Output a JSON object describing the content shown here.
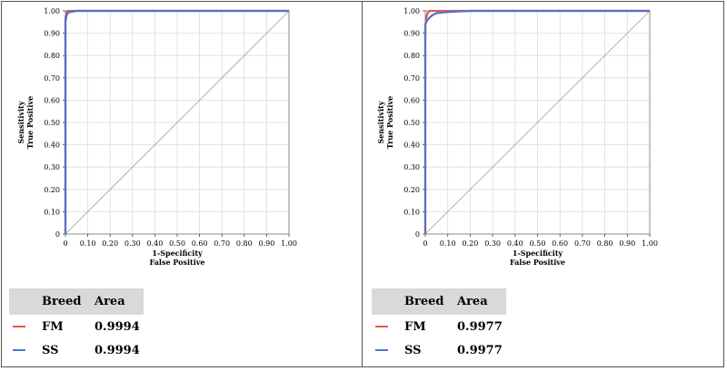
{
  "chart_data": [
    {
      "type": "line",
      "xlabel": [
        "1-Specificity",
        "False Positive"
      ],
      "ylabel": [
        "Sensitivity",
        "True Positive"
      ],
      "xlim": [
        0,
        1
      ],
      "ylim": [
        0,
        1
      ],
      "x_ticks": [
        "0",
        "0.10",
        "0.20",
        "0.30",
        "0.40",
        "0.50",
        "0.60",
        "0.70",
        "0.80",
        "0.90",
        "1.00"
      ],
      "y_ticks": [
        "0",
        "0.10",
        "0.20",
        "0.30",
        "0.40",
        "0.50",
        "0.60",
        "0.70",
        "0.80",
        "0.90",
        "1.00"
      ],
      "grid": true,
      "diagonal_reference": true,
      "series": [
        {
          "name": "FM",
          "color": "#e05a4f",
          "x": [
            0,
            0.0,
            0.005,
            0.01,
            0.02,
            0.05,
            0.1,
            1.0
          ],
          "y": [
            0,
            0.97,
            0.99,
            1.0,
            1.0,
            1.0,
            1.0,
            1.0
          ]
        },
        {
          "name": "SS",
          "color": "#5470c6",
          "x": [
            0,
            0.0,
            0.005,
            0.01,
            0.02,
            0.05,
            0.1,
            1.0
          ],
          "y": [
            0,
            0.95,
            0.98,
            0.99,
            0.995,
            1.0,
            1.0,
            1.0
          ]
        }
      ],
      "legend": {
        "headers": [
          "Breed",
          "Area"
        ],
        "rows": [
          {
            "breed": "FM",
            "area": "0.9994",
            "color": "#e05a4f"
          },
          {
            "breed": "SS",
            "area": "0.9994",
            "color": "#4a76c8"
          }
        ]
      }
    },
    {
      "type": "line",
      "xlabel": [
        "1-Specificity",
        "False Positive"
      ],
      "ylabel": [
        "Sensitivity",
        "True Positive"
      ],
      "xlim": [
        0,
        1
      ],
      "ylim": [
        0,
        1
      ],
      "x_ticks": [
        "0",
        "0.10",
        "0.20",
        "0.30",
        "0.40",
        "0.50",
        "0.60",
        "0.70",
        "0.80",
        "0.90",
        "1.00"
      ],
      "y_ticks": [
        "0",
        "0.10",
        "0.20",
        "0.30",
        "0.40",
        "0.50",
        "0.60",
        "0.70",
        "0.80",
        "0.90",
        "1.00"
      ],
      "grid": true,
      "diagonal_reference": true,
      "series": [
        {
          "name": "FM",
          "color": "#e05a4f",
          "x": [
            0,
            0.0,
            0.005,
            0.01,
            0.02,
            0.04,
            0.1,
            0.2,
            1.0
          ],
          "y": [
            0,
            0.93,
            0.97,
            0.99,
            1.0,
            1.0,
            1.0,
            1.0,
            1.0
          ]
        },
        {
          "name": "SS",
          "color": "#5470c6",
          "x": [
            0,
            0.0,
            0.005,
            0.01,
            0.03,
            0.05,
            0.1,
            0.2,
            1.0
          ],
          "y": [
            0,
            0.94,
            0.95,
            0.96,
            0.98,
            0.99,
            0.995,
            1.0,
            1.0
          ]
        }
      ],
      "legend": {
        "headers": [
          "Breed",
          "Area"
        ],
        "rows": [
          {
            "breed": "FM",
            "area": "0.9977",
            "color": "#e05a4f"
          },
          {
            "breed": "SS",
            "area": "0.9977",
            "color": "#4a76c8"
          }
        ]
      }
    }
  ]
}
